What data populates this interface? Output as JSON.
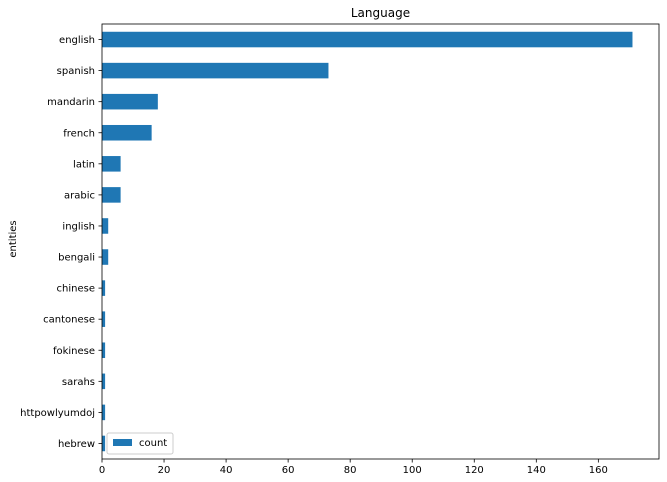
{
  "chart_data": {
    "type": "bar",
    "orientation": "horizontal",
    "title": "Language",
    "xlabel": "",
    "ylabel": "entities",
    "categories": [
      "english",
      "spanish",
      "mandarin",
      "french",
      "latin",
      "arabic",
      "inglish",
      "bengali",
      "chinese",
      "cantonese",
      "fokinese",
      "sarahs",
      "httpowlyumdoj",
      "hebrew"
    ],
    "series": [
      {
        "name": "count",
        "values": [
          171,
          73,
          18,
          16,
          6,
          6,
          2,
          2,
          1,
          1,
          1,
          1,
          1,
          1
        ],
        "color": "#1f77b4"
      }
    ],
    "xlim": [
      0,
      179.55
    ],
    "xticks": [
      0,
      20,
      40,
      60,
      80,
      100,
      120,
      140,
      160
    ],
    "grid": false,
    "legend_position": "lower-left"
  }
}
